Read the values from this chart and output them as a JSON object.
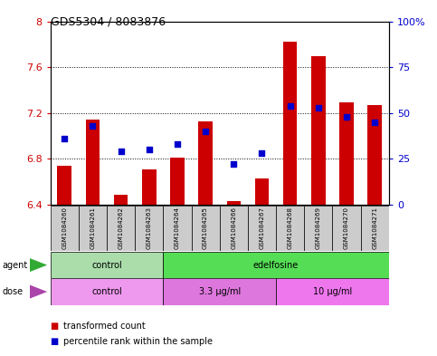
{
  "title": "GDS5304 / 8083876",
  "samples": [
    "GSM1084260",
    "GSM1084261",
    "GSM1084262",
    "GSM1084263",
    "GSM1084264",
    "GSM1084265",
    "GSM1084266",
    "GSM1084267",
    "GSM1084268",
    "GSM1084269",
    "GSM1084270",
    "GSM1084271"
  ],
  "transformed_count": [
    6.74,
    7.14,
    6.49,
    6.71,
    6.81,
    7.13,
    6.43,
    6.63,
    7.82,
    7.7,
    7.29,
    7.27
  ],
  "percentile_rank": [
    36,
    43,
    29,
    30,
    33,
    40,
    22,
    28,
    54,
    53,
    48,
    45
  ],
  "ylim_left": [
    6.4,
    8.0
  ],
  "ylim_right": [
    0,
    100
  ],
  "yticks_left": [
    6.4,
    6.8,
    7.2,
    7.6,
    8.0
  ],
  "ytick_labels_left": [
    "6.4",
    "6.8",
    "7.2",
    "7.6",
    "8"
  ],
  "yticks_right": [
    0,
    25,
    50,
    75,
    100
  ],
  "ytick_labels_right": [
    "0",
    "25",
    "50",
    "75",
    "100%"
  ],
  "bar_color": "#cc0000",
  "dot_color": "#0000cc",
  "bar_width": 0.5,
  "baseline": 6.4,
  "agent_groups": [
    {
      "label": "control",
      "start": 0,
      "end": 3,
      "color": "#aaddaa"
    },
    {
      "label": "edelfosine",
      "start": 4,
      "end": 11,
      "color": "#55dd55"
    }
  ],
  "dose_groups": [
    {
      "label": "control",
      "start": 0,
      "end": 3,
      "color": "#ee99ee"
    },
    {
      "label": "3.3 μg/ml",
      "start": 4,
      "end": 7,
      "color": "#dd77dd"
    },
    {
      "label": "10 μg/ml",
      "start": 8,
      "end": 11,
      "color": "#ee77ee"
    }
  ],
  "legend_items": [
    {
      "label": "transformed count",
      "color": "#cc0000"
    },
    {
      "label": "percentile rank within the sample",
      "color": "#0000cc"
    }
  ],
  "left_axis_color": "#cc0000",
  "right_axis_color": "#0000cc",
  "tick_label_bg": "#cccccc",
  "arrow_color": "#33aa33",
  "dose_arrow_color": "#aa44aa"
}
